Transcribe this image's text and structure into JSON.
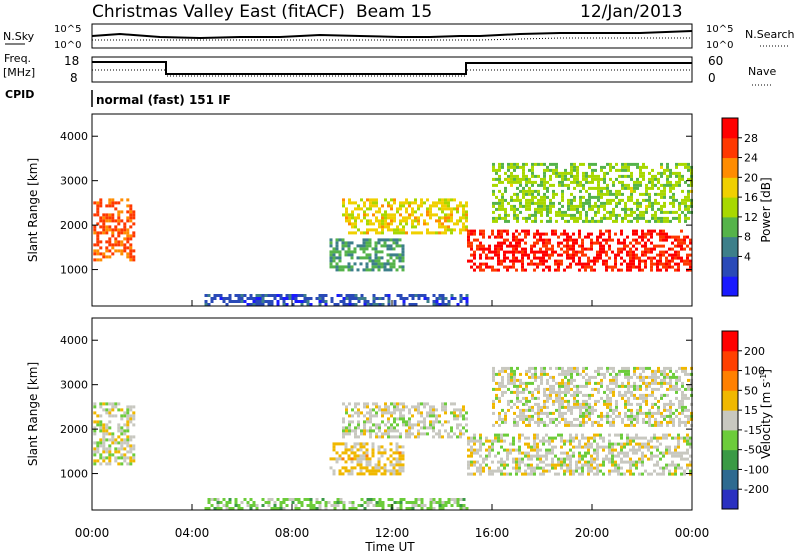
{
  "header": {
    "title": "Christmas Valley East (fitACF)",
    "beam": "Beam 15",
    "date": "12/Jan/2013"
  },
  "panels": {
    "nsky_label": "N.Sky",
    "nsearch_label": "N.Search",
    "nsky_ticks": [
      "10^5",
      "10^0"
    ],
    "freq_label": "Freq.",
    "freq_unit": "[MHz]",
    "freq_ticks": [
      "18",
      "8"
    ],
    "nave_label": "Nave",
    "nave_ticks": [
      "60",
      "0"
    ],
    "cpid_label": "CPID",
    "cpid_text": "normal (fast) 151 IF"
  },
  "axes": {
    "ylabel": "Slant Range [km]",
    "xlabel": "Time UT",
    "yticks": [
      "1000",
      "2000",
      "3000",
      "4000"
    ],
    "xticks": [
      "00:00",
      "04:00",
      "08:00",
      "12:00",
      "16:00",
      "20:00",
      "00:00"
    ]
  },
  "colorbars": {
    "power": {
      "label": "Power [dB]",
      "ticks": [
        "4",
        "8",
        "12",
        "16",
        "20",
        "24",
        "28"
      ],
      "colors": [
        "#1a1aff",
        "#2a4ab8",
        "#3d7f8a",
        "#55b34a",
        "#a8d800",
        "#f0d000",
        "#ff8c00",
        "#ff3800",
        "#ff0000"
      ]
    },
    "velocity": {
      "label": "Velocity [m s",
      "label_sup": "-1",
      "label_end": "]",
      "ticks": [
        "200",
        "100",
        "50",
        "15",
        "-15",
        "-50",
        "-100",
        "-200"
      ],
      "colors": [
        "#2a30c0",
        "#2e6a90",
        "#3a9a45",
        "#6ccc3a",
        "#c8c8c0",
        "#f0b800",
        "#ff8000",
        "#ff4000",
        "#ff0000"
      ]
    }
  },
  "chart_data": [
    {
      "type": "heatmap",
      "name": "Power",
      "x": [
        "00:00",
        "04:00",
        "08:00",
        "12:00",
        "16:00",
        "20:00",
        "00:00"
      ],
      "ylim": [
        180,
        4500
      ],
      "clim": [
        0,
        30
      ],
      "bands": [
        {
          "t0": 0.05,
          "t1": 1.7,
          "r0": 1200,
          "r1": 2600,
          "level": 24
        },
        {
          "t0": 9.5,
          "t1": 12.5,
          "r0": 1000,
          "r1": 1700,
          "level": 10
        },
        {
          "t0": 10.0,
          "t1": 15.0,
          "r0": 1800,
          "r1": 2600,
          "level": 18
        },
        {
          "t0": 15.0,
          "t1": 24.0,
          "r0": 1000,
          "r1": 1900,
          "level": 27
        },
        {
          "t0": 16.0,
          "t1": 24.0,
          "r0": 2100,
          "r1": 3400,
          "level": 14
        },
        {
          "t0": 4.5,
          "t1": 15.0,
          "r0": 200,
          "r1": 450,
          "level": 5
        }
      ]
    },
    {
      "type": "heatmap",
      "name": "Velocity",
      "x": [
        "00:00",
        "04:00",
        "08:00",
        "12:00",
        "16:00",
        "20:00",
        "00:00"
      ],
      "ylim": [
        180,
        4500
      ],
      "clim": [
        -200,
        200
      ],
      "bands": [
        {
          "t0": 0.05,
          "t1": 1.7,
          "r0": 1200,
          "r1": 2600,
          "level": 0
        },
        {
          "t0": 9.5,
          "t1": 12.5,
          "r0": 1000,
          "r1": 1700,
          "level": 35
        },
        {
          "t0": 10.0,
          "t1": 15.0,
          "r0": 1800,
          "r1": 2600,
          "level": 0
        },
        {
          "t0": 15.0,
          "t1": 24.0,
          "r0": 1000,
          "r1": 1900,
          "level": 0
        },
        {
          "t0": 16.0,
          "t1": 24.0,
          "r0": 2100,
          "r1": 3400,
          "level": 0
        },
        {
          "t0": 4.5,
          "t1": 15.0,
          "r0": 200,
          "r1": 450,
          "level": -40
        }
      ]
    }
  ]
}
